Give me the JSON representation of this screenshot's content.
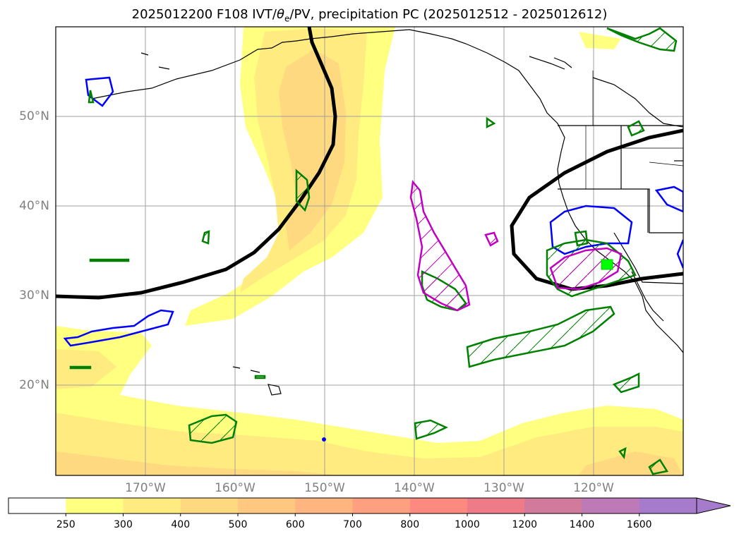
{
  "title": {
    "prefix": "2025012200 F108 IVT/",
    "theta_sym": "θ",
    "theta_sub": "e",
    "suffix": "/PV, precipitation PC (2025012512 - 2025012612)"
  },
  "map": {
    "lat_labels": [
      "50°N",
      "40°N",
      "30°N",
      "20°N"
    ],
    "lon_labels": [
      "170°W",
      "160°W",
      "150°W",
      "140°W",
      "130°W",
      "120°W"
    ],
    "gridlines": true,
    "colors": {
      "ivt_250": "#ffff80",
      "ivt_300": "#ffeb80",
      "ivt_400": "#fed980",
      "pv_contour": "#000000",
      "theta_contour": "#0000ff",
      "precip_contour_green": "#008000",
      "precip_contour_magenta": "#c000c0",
      "highlight_box": "#00ff00"
    }
  },
  "colorbar": {
    "labels": [
      "250",
      "300",
      "400",
      "500",
      "600",
      "700",
      "800",
      "1000",
      "1200",
      "1400",
      "1600"
    ],
    "colors": [
      "#ffffff",
      "#ffff80",
      "#ffeb80",
      "#fed980",
      "#fec880",
      "#feb580",
      "#fea080",
      "#fd8a80",
      "#ee7c88",
      "#d17a9c",
      "#bd7ab7",
      "#a67bcb"
    ],
    "extend": "max"
  }
}
